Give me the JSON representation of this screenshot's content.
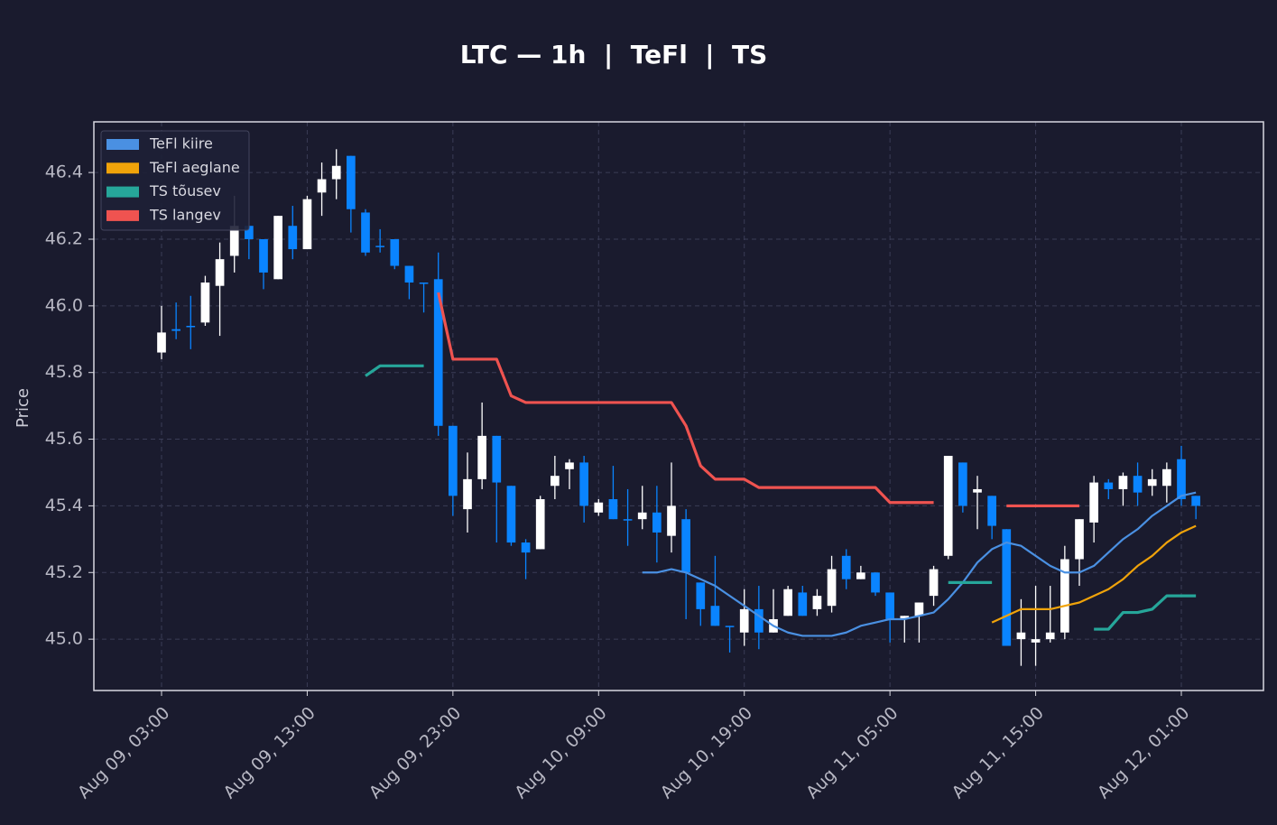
{
  "chart_data": {
    "type": "candlestick",
    "title": "LTC — 1h  |  TeFl  |  TS",
    "y_label": "Price",
    "categories": [
      "Aug 09, 03:00",
      null,
      null,
      null,
      null,
      null,
      null,
      null,
      null,
      null,
      "Aug 09, 13:00",
      null,
      null,
      null,
      null,
      null,
      null,
      null,
      null,
      null,
      "Aug 09, 23:00",
      null,
      null,
      null,
      null,
      null,
      null,
      null,
      null,
      null,
      "Aug 10, 09:00",
      null,
      null,
      null,
      null,
      null,
      null,
      null,
      null,
      null,
      "Aug 10, 19:00",
      null,
      null,
      null,
      null,
      null,
      null,
      null,
      null,
      null,
      "Aug 11, 05:00",
      null,
      null,
      null,
      null,
      null,
      null,
      null,
      null,
      null,
      "Aug 11, 15:00",
      null,
      null,
      null,
      null,
      null,
      null,
      null,
      null,
      null,
      "Aug 12, 01:00",
      null
    ],
    "open": [
      45.86,
      45.93,
      45.94,
      45.95,
      46.06,
      46.15,
      46.24,
      46.2,
      46.08,
      46.24,
      46.17,
      46.34,
      46.38,
      46.45,
      46.28,
      46.18,
      46.2,
      46.12,
      46.07,
      46.08,
      45.64,
      45.39,
      45.48,
      45.61,
      45.46,
      45.29,
      45.27,
      45.46,
      45.51,
      45.53,
      45.38,
      45.42,
      45.36,
      45.36,
      45.38,
      45.31,
      45.36,
      45.17,
      45.1,
      45.04,
      45.02,
      45.09,
      45.02,
      45.07,
      45.14,
      45.09,
      45.1,
      45.25,
      45.18,
      45.2,
      45.14,
      45.06,
      45.07,
      45.13,
      45.25,
      45.53,
      45.44,
      45.43,
      45.33,
      45.0,
      44.99,
      45.0,
      45.02,
      45.24,
      45.35,
      45.47,
      45.45,
      45.49,
      45.46,
      45.46,
      45.54,
      45.43
    ],
    "high": [
      46.0,
      46.01,
      46.03,
      46.09,
      46.19,
      46.33,
      46.24,
      46.2,
      46.27,
      46.3,
      46.33,
      46.43,
      46.47,
      46.45,
      46.29,
      46.23,
      46.2,
      46.12,
      46.07,
      46.16,
      45.64,
      45.56,
      45.71,
      45.61,
      45.46,
      45.3,
      45.43,
      45.55,
      45.54,
      45.55,
      45.42,
      45.52,
      45.45,
      45.46,
      45.46,
      45.53,
      45.39,
      45.17,
      45.25,
      45.04,
      45.15,
      45.16,
      45.15,
      45.16,
      45.16,
      45.15,
      45.25,
      45.27,
      45.22,
      45.2,
      45.14,
      45.07,
      45.11,
      45.22,
      45.55,
      45.53,
      45.49,
      45.43,
      45.33,
      45.12,
      45.16,
      45.16,
      45.28,
      45.36,
      45.49,
      45.48,
      45.5,
      45.53,
      45.51,
      45.53,
      45.58,
      45.43
    ],
    "low": [
      45.84,
      45.9,
      45.87,
      45.94,
      45.91,
      46.1,
      46.14,
      46.05,
      46.08,
      46.14,
      46.17,
      46.27,
      46.32,
      46.22,
      46.15,
      46.16,
      46.11,
      46.02,
      45.98,
      45.61,
      45.37,
      45.32,
      45.45,
      45.29,
      45.28,
      45.18,
      45.27,
      45.42,
      45.45,
      45.35,
      45.37,
      45.36,
      45.28,
      45.33,
      45.23,
      45.26,
      45.06,
      45.04,
      45.04,
      44.96,
      44.98,
      44.97,
      45.02,
      45.07,
      45.07,
      45.07,
      45.08,
      45.15,
      45.18,
      45.13,
      44.99,
      44.99,
      44.99,
      45.1,
      45.24,
      45.38,
      45.33,
      45.3,
      44.98,
      44.92,
      44.92,
      44.99,
      45.0,
      45.16,
      45.29,
      45.42,
      45.4,
      45.4,
      45.43,
      45.41,
      45.4,
      45.36
    ],
    "close": [
      45.92,
      45.925,
      45.94,
      46.07,
      46.14,
      46.24,
      46.2,
      46.1,
      46.27,
      46.17,
      46.32,
      46.38,
      46.42,
      46.29,
      46.16,
      46.18,
      46.12,
      46.07,
      46.07,
      45.64,
      45.43,
      45.48,
      45.61,
      45.47,
      45.29,
      45.26,
      45.42,
      45.49,
      45.53,
      45.4,
      45.41,
      45.36,
      45.36,
      45.38,
      45.32,
      45.4,
      45.2,
      45.09,
      45.04,
      45.04,
      45.09,
      45.02,
      45.06,
      45.15,
      45.07,
      45.13,
      45.21,
      45.18,
      45.2,
      45.14,
      45.06,
      45.07,
      45.11,
      45.21,
      45.55,
      45.4,
      45.45,
      45.34,
      44.98,
      45.02,
      45.0,
      45.02,
      45.24,
      45.36,
      45.47,
      45.45,
      45.49,
      45.44,
      45.48,
      45.51,
      45.42,
      45.4
    ],
    "up_color": "#ffffff",
    "down_color": "#0a84ff",
    "series": [
      {
        "name": "TeFl kiire",
        "color": "#4a90e2",
        "values": [
          null,
          null,
          null,
          null,
          null,
          null,
          null,
          null,
          null,
          null,
          null,
          null,
          null,
          null,
          null,
          null,
          null,
          null,
          null,
          null,
          null,
          null,
          null,
          null,
          null,
          null,
          null,
          null,
          null,
          null,
          null,
          null,
          null,
          45.2,
          45.2,
          45.21,
          45.2,
          45.18,
          45.16,
          45.13,
          45.1,
          45.07,
          45.04,
          45.02,
          45.01,
          45.01,
          45.01,
          45.02,
          45.04,
          45.05,
          45.06,
          45.06,
          45.07,
          45.08,
          45.12,
          45.17,
          45.23,
          45.27,
          45.29,
          45.28,
          45.25,
          45.22,
          45.2,
          45.2,
          45.22,
          45.26,
          45.3,
          45.33,
          45.37,
          45.4,
          45.43,
          45.44
        ]
      },
      {
        "name": "TeFl aeglane",
        "color": "#f0a30a",
        "values": [
          null,
          null,
          null,
          null,
          null,
          null,
          null,
          null,
          null,
          null,
          null,
          null,
          null,
          null,
          null,
          null,
          null,
          null,
          null,
          null,
          null,
          null,
          null,
          null,
          null,
          null,
          null,
          null,
          null,
          null,
          null,
          null,
          null,
          null,
          null,
          null,
          null,
          null,
          null,
          null,
          null,
          null,
          null,
          null,
          null,
          null,
          null,
          null,
          null,
          null,
          null,
          null,
          null,
          null,
          null,
          null,
          null,
          45.05,
          45.07,
          45.09,
          45.09,
          45.09,
          45.1,
          45.11,
          45.13,
          45.15,
          45.18,
          45.22,
          45.25,
          45.29,
          45.32,
          45.34
        ]
      },
      {
        "name": "TS tõusev",
        "color": "#26a69a",
        "values": [
          null,
          null,
          null,
          null,
          null,
          null,
          null,
          null,
          null,
          null,
          null,
          null,
          null,
          null,
          45.79,
          45.82,
          45.82,
          45.82,
          45.82,
          null,
          null,
          null,
          null,
          null,
          null,
          null,
          null,
          null,
          null,
          null,
          null,
          null,
          null,
          null,
          null,
          null,
          null,
          null,
          null,
          null,
          null,
          null,
          null,
          null,
          null,
          null,
          null,
          null,
          null,
          null,
          null,
          null,
          null,
          null,
          45.17,
          45.17,
          45.17,
          45.17,
          null,
          null,
          null,
          null,
          null,
          null,
          45.03,
          45.03,
          45.08,
          45.08,
          45.09,
          45.13,
          45.13,
          45.13
        ]
      },
      {
        "name": "TS langev",
        "color": "#ef5350",
        "values": [
          null,
          null,
          null,
          null,
          null,
          null,
          null,
          null,
          null,
          null,
          null,
          null,
          null,
          null,
          null,
          null,
          null,
          null,
          null,
          46.04,
          45.84,
          45.84,
          45.84,
          45.84,
          45.73,
          45.71,
          45.71,
          45.71,
          45.71,
          45.71,
          45.71,
          45.71,
          45.71,
          45.71,
          45.71,
          45.71,
          45.64,
          45.52,
          45.48,
          45.48,
          45.48,
          45.455,
          45.455,
          45.455,
          45.455,
          45.455,
          45.455,
          45.455,
          45.455,
          45.455,
          45.41,
          45.41,
          45.41,
          45.41,
          null,
          null,
          null,
          null,
          45.4,
          45.4,
          45.4,
          45.4,
          45.4,
          45.4,
          null,
          null,
          null,
          null,
          null,
          null,
          null,
          null
        ]
      }
    ],
    "ylim": [
      44.846,
      46.552
    ],
    "yticks": [
      {
        "value": 45.0,
        "label": "45.0"
      },
      {
        "value": 45.2,
        "label": "45.2"
      },
      {
        "value": 45.4,
        "label": "45.4"
      },
      {
        "value": 45.6,
        "label": "45.6"
      },
      {
        "value": 45.8,
        "label": "45.8"
      },
      {
        "value": 46.0,
        "label": "46.0"
      },
      {
        "value": 46.2,
        "label": "46.2"
      },
      {
        "value": 46.4,
        "label": "46.4"
      }
    ],
    "grid": true,
    "legend": "upper left"
  }
}
